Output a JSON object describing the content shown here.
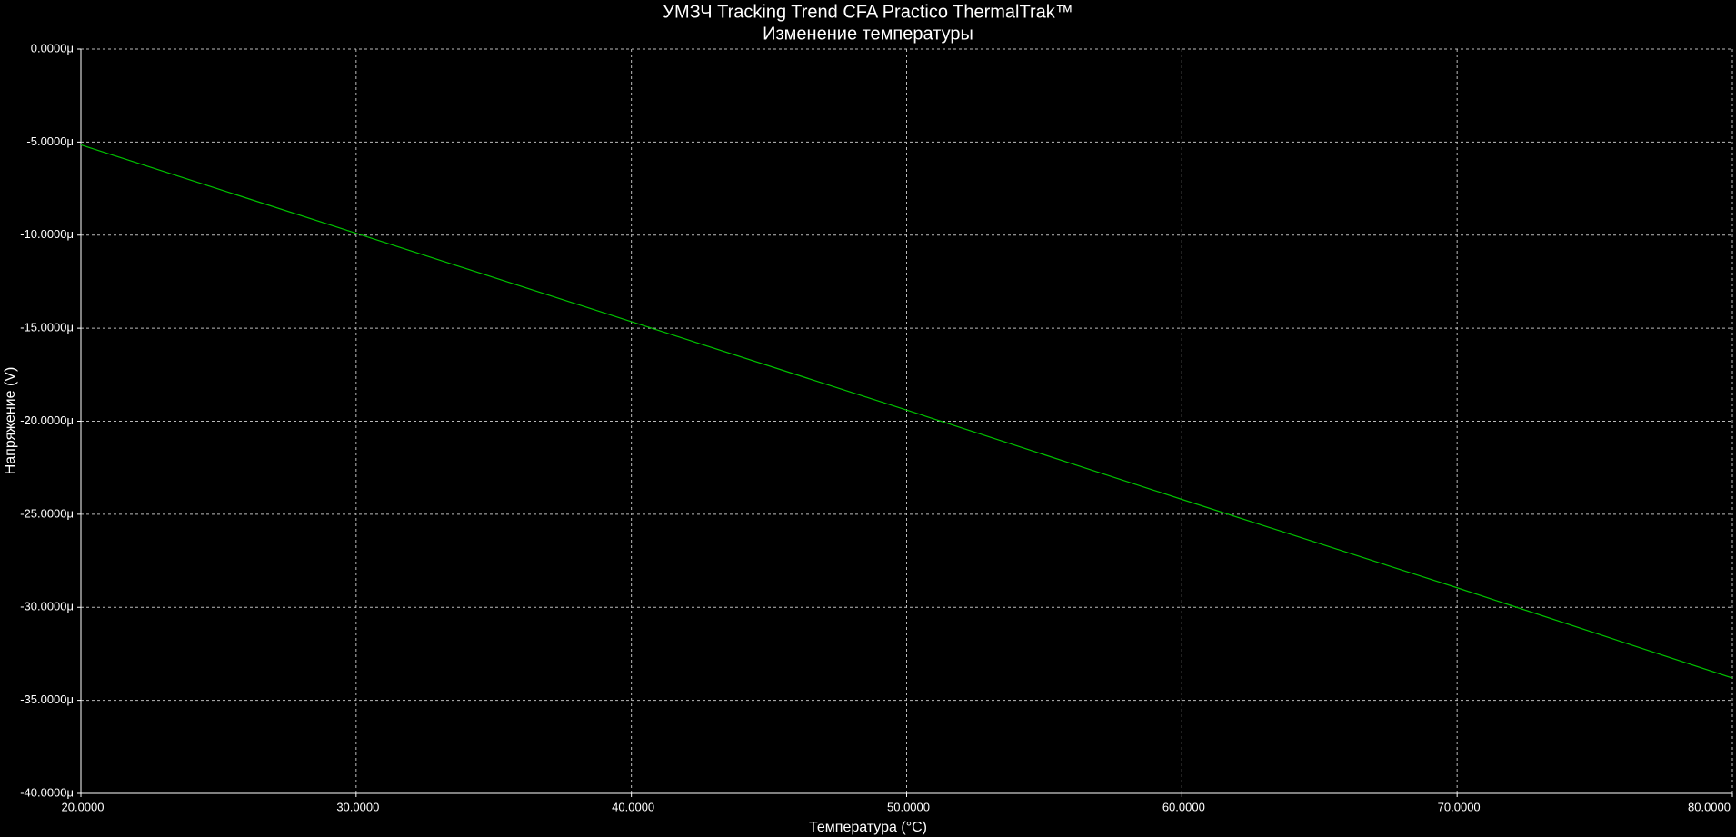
{
  "chart_data": {
    "type": "line",
    "title": "УМЗЧ Tracking Trend CFA Practico ThermalTrak™",
    "subtitle": "Изменение температуры",
    "x_label": "Температура (°C)",
    "y_label": "Напряжение (V)",
    "x": [
      20,
      30,
      40,
      50,
      60,
      70,
      80
    ],
    "series": [
      {
        "name": "V",
        "color": "#00c000",
        "values": [
          -5.15,
          -9.9,
          -14.65,
          -19.4,
          -24.2,
          -28.95,
          -33.8
        ]
      }
    ],
    "xlim": [
      20,
      80
    ],
    "xticks": [
      {
        "value": 20,
        "label": "20.0000"
      },
      {
        "value": 30,
        "label": "30.0000"
      },
      {
        "value": 40,
        "label": "40.0000"
      },
      {
        "value": 50,
        "label": "50.0000"
      },
      {
        "value": 60,
        "label": "60.0000"
      },
      {
        "value": 70,
        "label": "70.0000"
      },
      {
        "value": 80,
        "label": "80.0000"
      }
    ],
    "ylim": [
      -40,
      0
    ],
    "yticks": [
      {
        "value": 0,
        "label": "0.0000μ"
      },
      {
        "value": -5,
        "label": "-5.0000μ"
      },
      {
        "value": -10,
        "label": "-10.0000μ"
      },
      {
        "value": -15,
        "label": "-15.0000μ"
      },
      {
        "value": -20,
        "label": "-20.0000μ"
      },
      {
        "value": -25,
        "label": "-25.0000μ"
      },
      {
        "value": -30,
        "label": "-30.0000μ"
      },
      {
        "value": -35,
        "label": "-35.0000μ"
      },
      {
        "value": -40,
        "label": "-40.0000μ"
      }
    ],
    "grid": true
  }
}
